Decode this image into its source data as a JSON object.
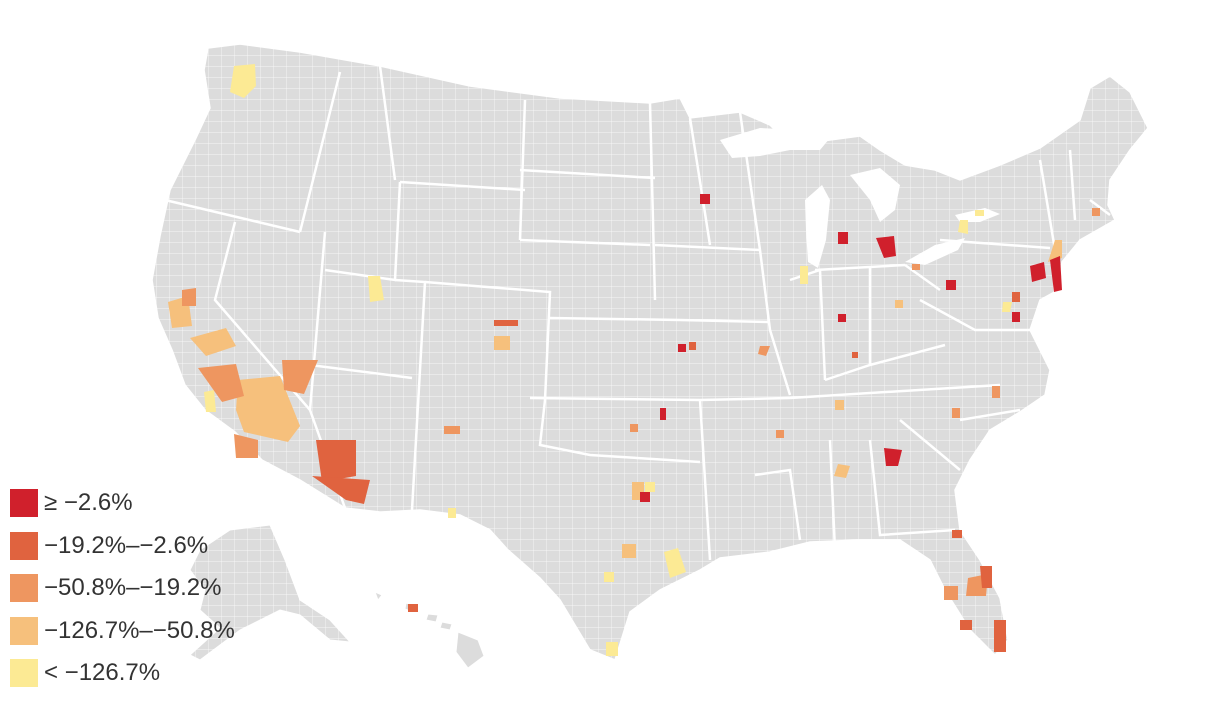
{
  "legend": {
    "items": [
      {
        "label": "≥ −2.6%",
        "color": "#d0202c"
      },
      {
        "label": "−19.2%–−2.6%",
        "color": "#e0633f"
      },
      {
        "label": "−50.8%–−19.2%",
        "color": "#ee9660"
      },
      {
        "label": "−126.7%–−50.8%",
        "color": "#f6c07c"
      },
      {
        "label": "< −126.7%",
        "color": "#fcea94"
      }
    ]
  },
  "map": {
    "land_color": "#dcdcdc",
    "border_color": "#ffffff"
  }
}
